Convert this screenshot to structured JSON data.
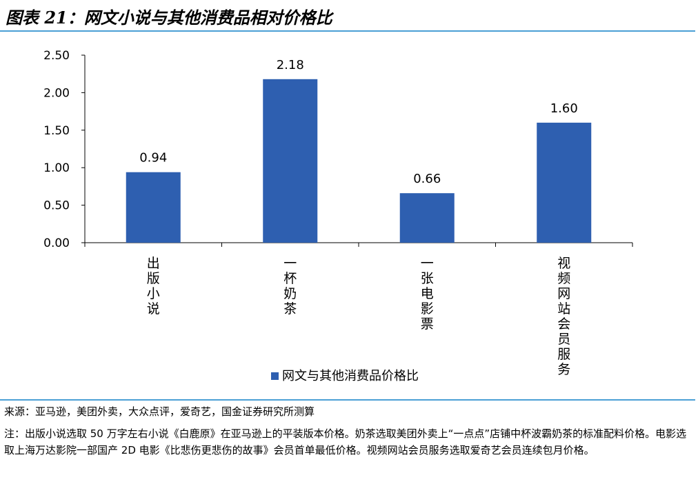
{
  "figure": {
    "title": "图表 21：网文小说与其他消费品相对价格比",
    "source": "来源：亚马逊，美团外卖，大众点评，爱奇艺，国金证券研究所测算",
    "note": "注：出版小说选取 50 万字左右小说《白鹿原》在亚马逊上的平装版本价格。奶茶选取美团外卖上“一点点”店铺中杯波霸奶茶的标准配料价格。电影选取上海万达影院一部国产 2D 电影《比悲伤更悲伤的故事》会员首单最低价格。视频网站会员服务选取爱奇艺会员连续包月价格。"
  },
  "chart_data": {
    "type": "bar",
    "categories": [
      "出版小说",
      "一杯奶茶",
      "一张电影票",
      "视频网站会员服务"
    ],
    "series": [
      {
        "name": "网文与其他消费品价格比",
        "values": [
          0.94,
          2.18,
          0.66,
          1.6
        ]
      }
    ],
    "value_labels": [
      "0.94",
      "2.18",
      "0.66",
      "1.60"
    ],
    "yticks": [
      "0.00",
      "0.50",
      "1.00",
      "1.50",
      "2.00",
      "2.50"
    ],
    "ylim": [
      0,
      2.5
    ],
    "grid": false,
    "legend": "bottom",
    "bar_color": "#2e5fb0"
  }
}
